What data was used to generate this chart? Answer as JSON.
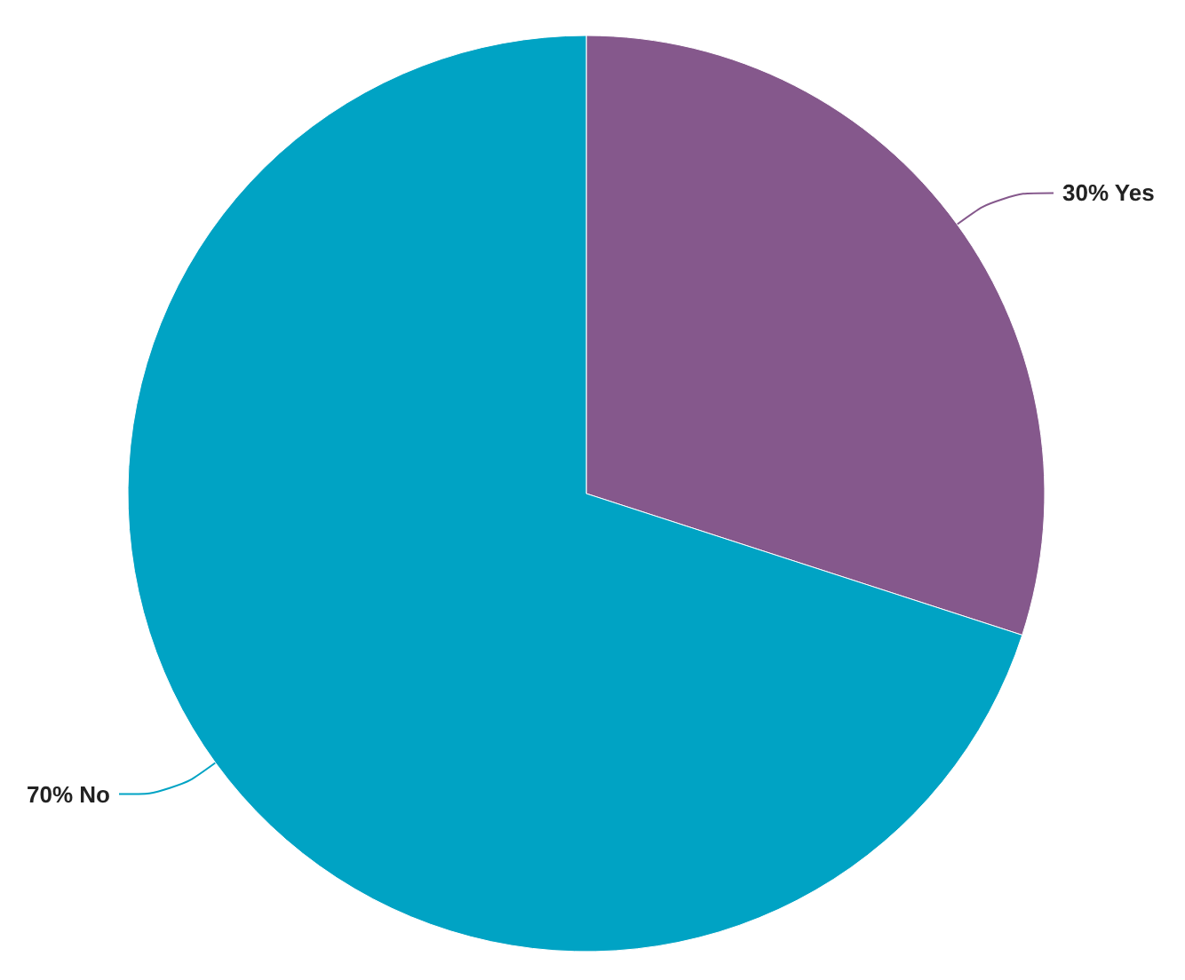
{
  "chart_data": {
    "type": "pie",
    "categories": [
      "Yes",
      "No"
    ],
    "values": [
      30,
      70
    ],
    "colors": [
      "#85588c",
      "#00a3c4"
    ],
    "value_labels": [
      "30%",
      "70%"
    ],
    "legend": false
  }
}
